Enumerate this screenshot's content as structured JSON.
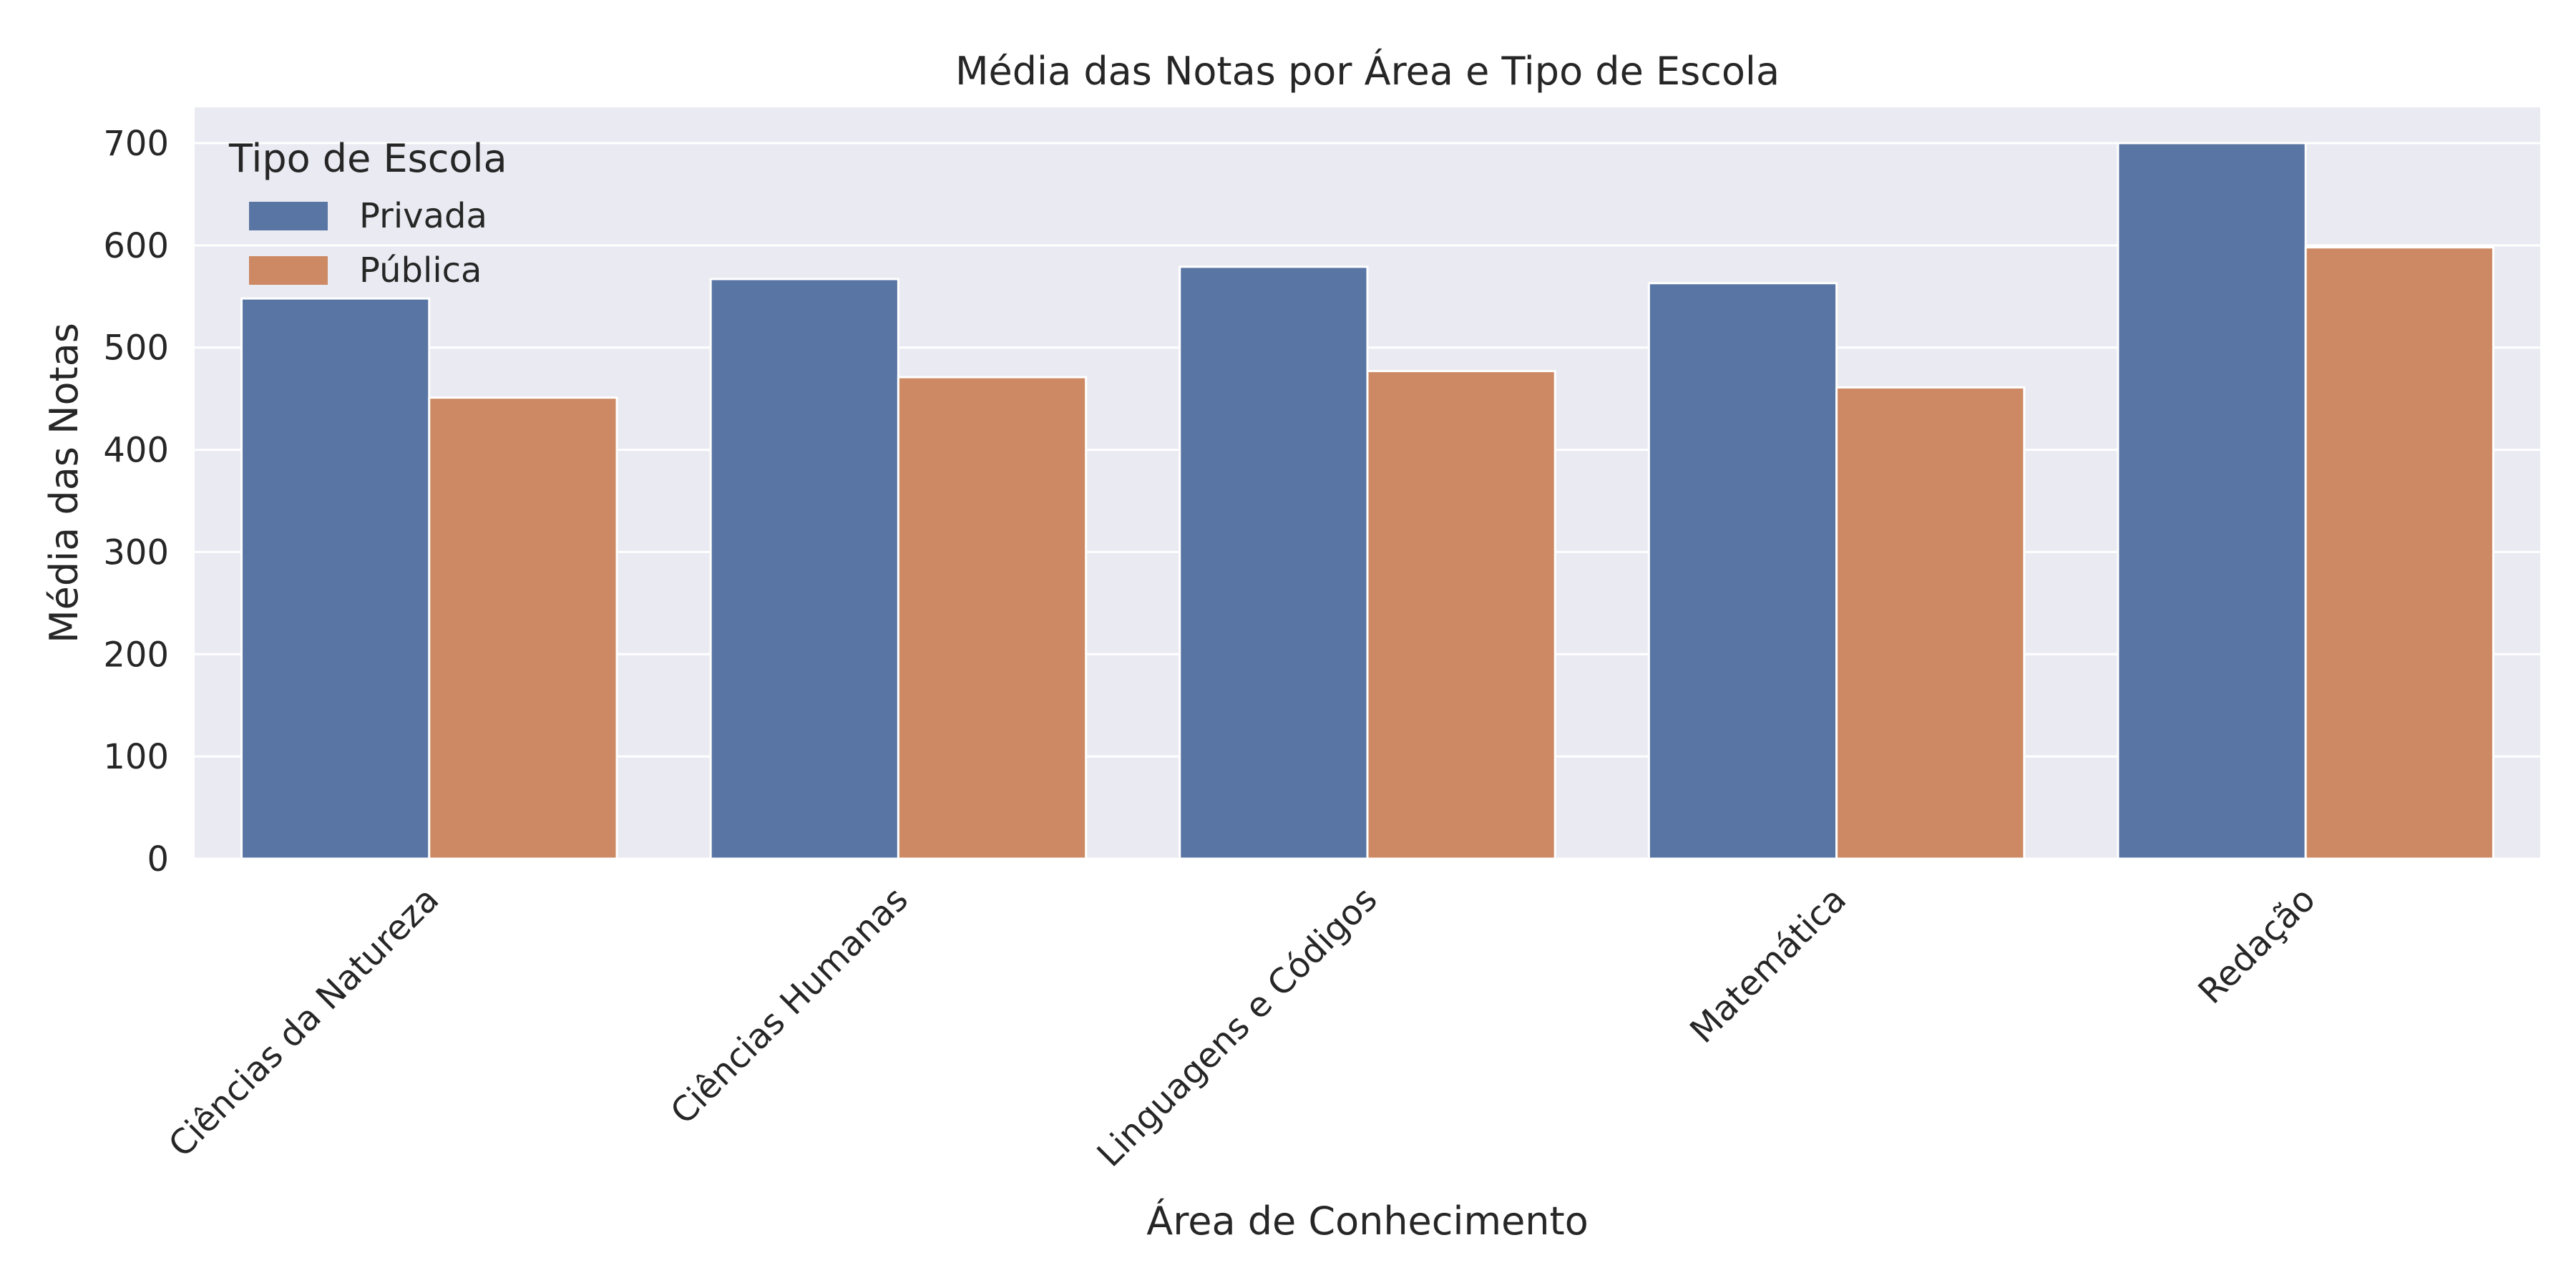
{
  "chart_data": {
    "type": "bar",
    "title": "Média das Notas por Área e Tipo de Escola",
    "xlabel": "Área de Conhecimento",
    "ylabel": "Média das Notas",
    "categories": [
      "Ciências da Natureza",
      "Ciências Humanas",
      "Linguagens e Códigos",
      "Matemática",
      "Redação"
    ],
    "series": [
      {
        "name": "Privada",
        "color": "#5975a4",
        "values": [
          548,
          567,
          579,
          563,
          700
        ]
      },
      {
        "name": "Pública",
        "color": "#cc8963",
        "values": [
          451,
          471,
          477,
          461,
          598
        ]
      }
    ],
    "ylim": [
      0,
      735
    ],
    "yticks": [
      0,
      100,
      200,
      300,
      400,
      500,
      600,
      700
    ],
    "grid": true,
    "legend": {
      "title": "Tipo de Escola",
      "placement": "top-left"
    },
    "background_color": "#eaeaf2"
  }
}
